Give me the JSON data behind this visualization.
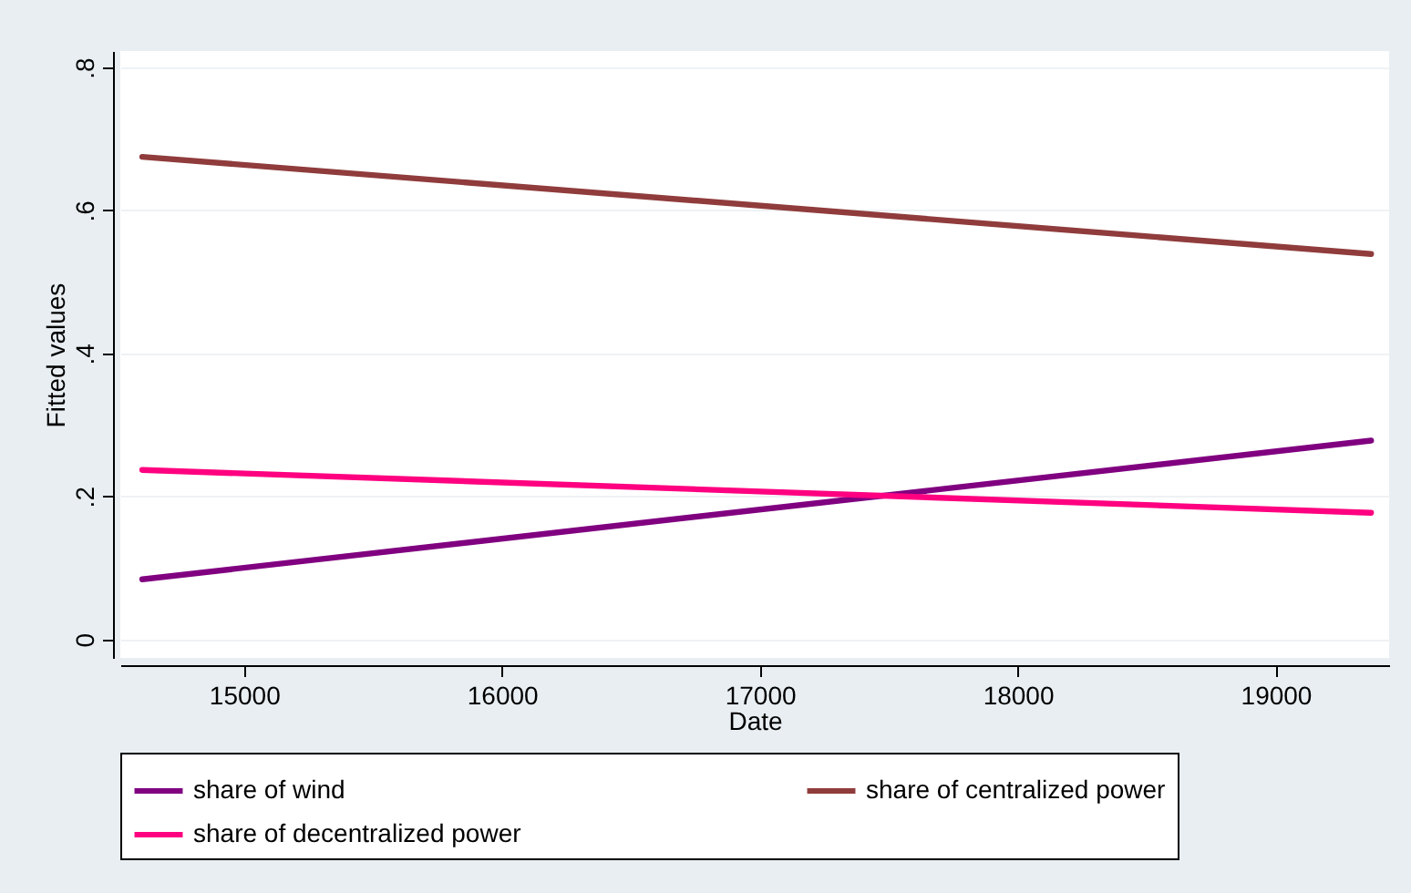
{
  "chart_data": {
    "type": "line",
    "xlabel": "Date",
    "ylabel": "Fitted values",
    "x": [
      14605,
      19370
    ],
    "series": [
      {
        "name": "share of wind",
        "color": "#800080",
        "values": [
          0.084,
          0.278
        ]
      },
      {
        "name": "share of centralized power",
        "color": "#903c3c",
        "values": [
          0.675,
          0.539
        ]
      },
      {
        "name": "share of decentralized power",
        "color": "#ff0080",
        "values": [
          0.237,
          0.177
        ]
      }
    ],
    "xlim": [
      14520,
      19440
    ],
    "xticks": [
      15000,
      16000,
      17000,
      18000,
      19000
    ],
    "ylim": [
      -0.026,
      0.823
    ],
    "yticks": [
      0,
      {
        "value": 0.2,
        "label": ".2"
      },
      {
        "value": 0.4,
        "label": ".4"
      },
      {
        "value": 0.6,
        "label": ".6"
      },
      {
        "value": 0.8,
        "label": ".8"
      }
    ],
    "grid": "y",
    "legend": "bottom",
    "line_style": "solid"
  }
}
